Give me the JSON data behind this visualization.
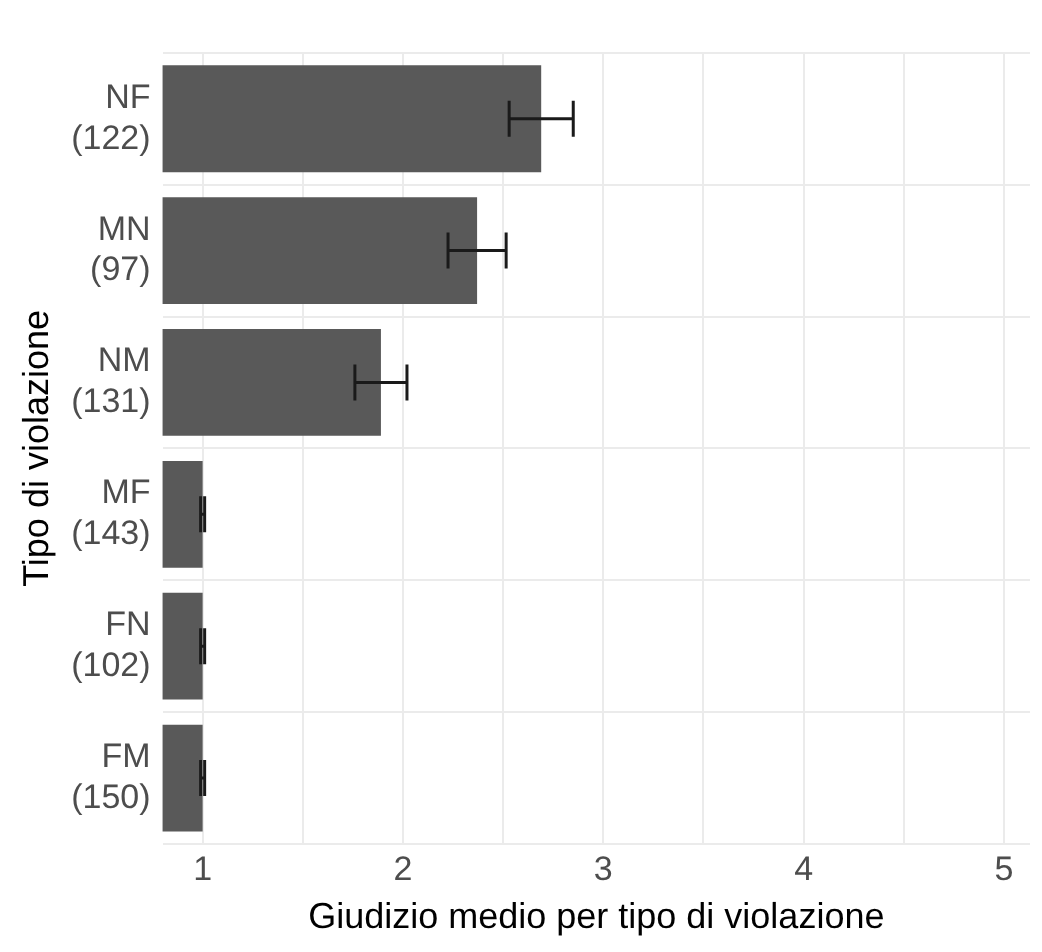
{
  "chart_data": {
    "type": "bar",
    "orientation": "horizontal",
    "xlabel": "Giudizio medio per tipo di violazione",
    "ylabel": "Tipo di violazione",
    "categories": [
      "NF\n(122)",
      "MN\n(97)",
      "NM\n(131)",
      "MF\n(143)",
      "FN\n(102)",
      "FM\n(150)"
    ],
    "values": [
      2.69,
      2.37,
      1.89,
      1.0,
      1.0,
      1.0
    ],
    "errors": [
      0.16,
      0.145,
      0.13,
      0.01,
      0.01,
      0.01
    ],
    "color": "#595959",
    "xlim": [
      0.8,
      5.13
    ],
    "xticks": [
      1,
      {
        "value": 1.5,
        "label": null
      },
      2,
      {
        "value": 2.5,
        "label": null
      },
      3,
      {
        "value": 3.5,
        "label": null
      },
      4,
      {
        "value": 4.5,
        "label": null
      },
      5
    ],
    "grid": true
  }
}
